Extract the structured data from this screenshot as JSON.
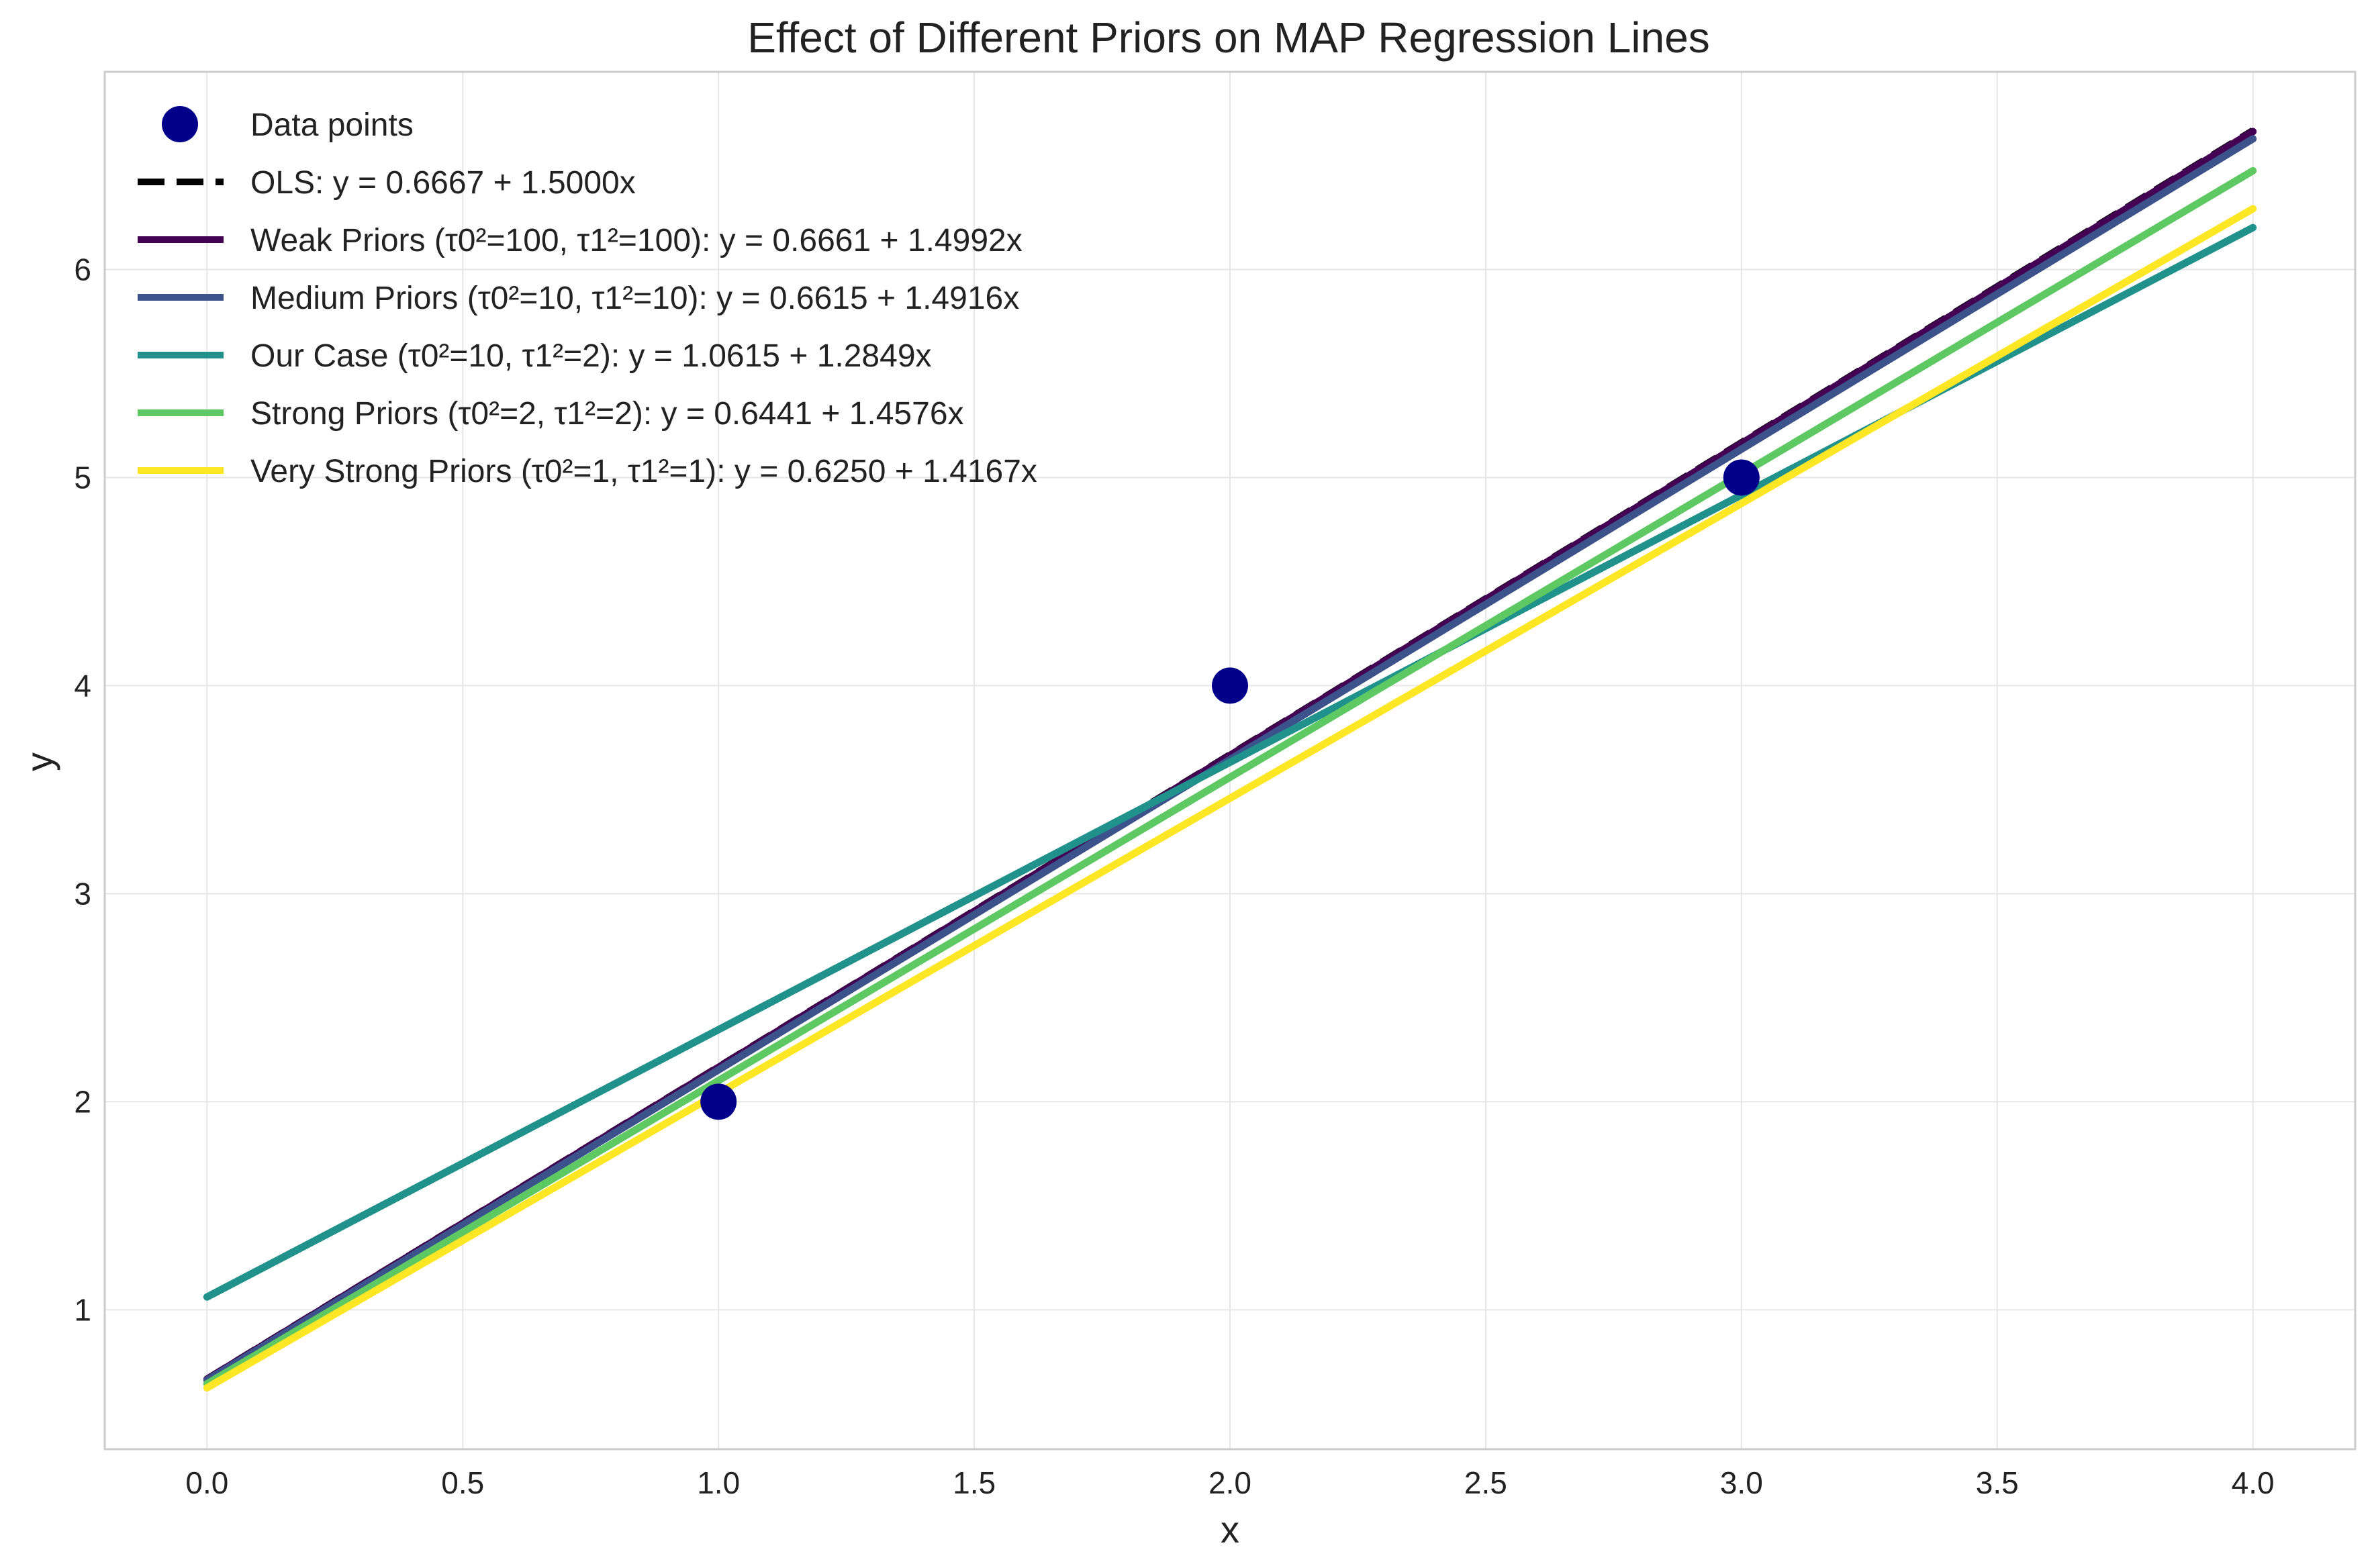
{
  "chart_data": {
    "type": "line",
    "title": "Effect of Different Priors on MAP Regression Lines",
    "xlabel": "x",
    "ylabel": "y",
    "xlim": [
      -0.2,
      4.2
    ],
    "ylim": [
      0.33,
      6.95
    ],
    "xticks": [
      0.0,
      0.5,
      1.0,
      1.5,
      2.0,
      2.5,
      3.0,
      3.5,
      4.0
    ],
    "xtick_labels": [
      "0.0",
      "0.5",
      "1.0",
      "1.5",
      "2.0",
      "2.5",
      "3.0",
      "3.5",
      "4.0"
    ],
    "yticks": [
      1,
      2,
      3,
      4,
      5,
      6
    ],
    "ytick_labels": [
      "1",
      "2",
      "3",
      "4",
      "5",
      "6"
    ],
    "grid": true,
    "legend_position": "top-left",
    "x_range": [
      0,
      4
    ],
    "points": {
      "name": "Data points",
      "color": "#00008b",
      "x": [
        1,
        2,
        3
      ],
      "y": [
        2,
        4,
        5
      ]
    },
    "series": [
      {
        "name": "OLS: y = 0.6667 + 1.5000x",
        "intercept": 0.6667,
        "slope": 1.5,
        "color": "#000000",
        "dashed": true
      },
      {
        "name": "Weak Priors (τ0²=100, τ1²=100): y = 0.6661 + 1.4992x",
        "intercept": 0.6661,
        "slope": 1.4992,
        "color": "#440154",
        "dashed": false
      },
      {
        "name": "Medium Priors (τ0²=10, τ1²=10): y = 0.6615 + 1.4916x",
        "intercept": 0.6615,
        "slope": 1.4916,
        "color": "#3b528b",
        "dashed": false
      },
      {
        "name": "Our Case (τ0²=10, τ1²=2): y = 1.0615 + 1.2849x",
        "intercept": 1.0615,
        "slope": 1.2849,
        "color": "#21918c",
        "dashed": false
      },
      {
        "name": "Strong Priors (τ0²=2, τ1²=2): y = 0.6441 + 1.4576x",
        "intercept": 0.6441,
        "slope": 1.4576,
        "color": "#5ec962",
        "dashed": false
      },
      {
        "name": "Very Strong Priors (τ0²=1, τ1²=1): y = 0.6250 + 1.4167x",
        "intercept": 0.625,
        "slope": 1.4167,
        "color": "#fde725",
        "dashed": false
      }
    ]
  }
}
